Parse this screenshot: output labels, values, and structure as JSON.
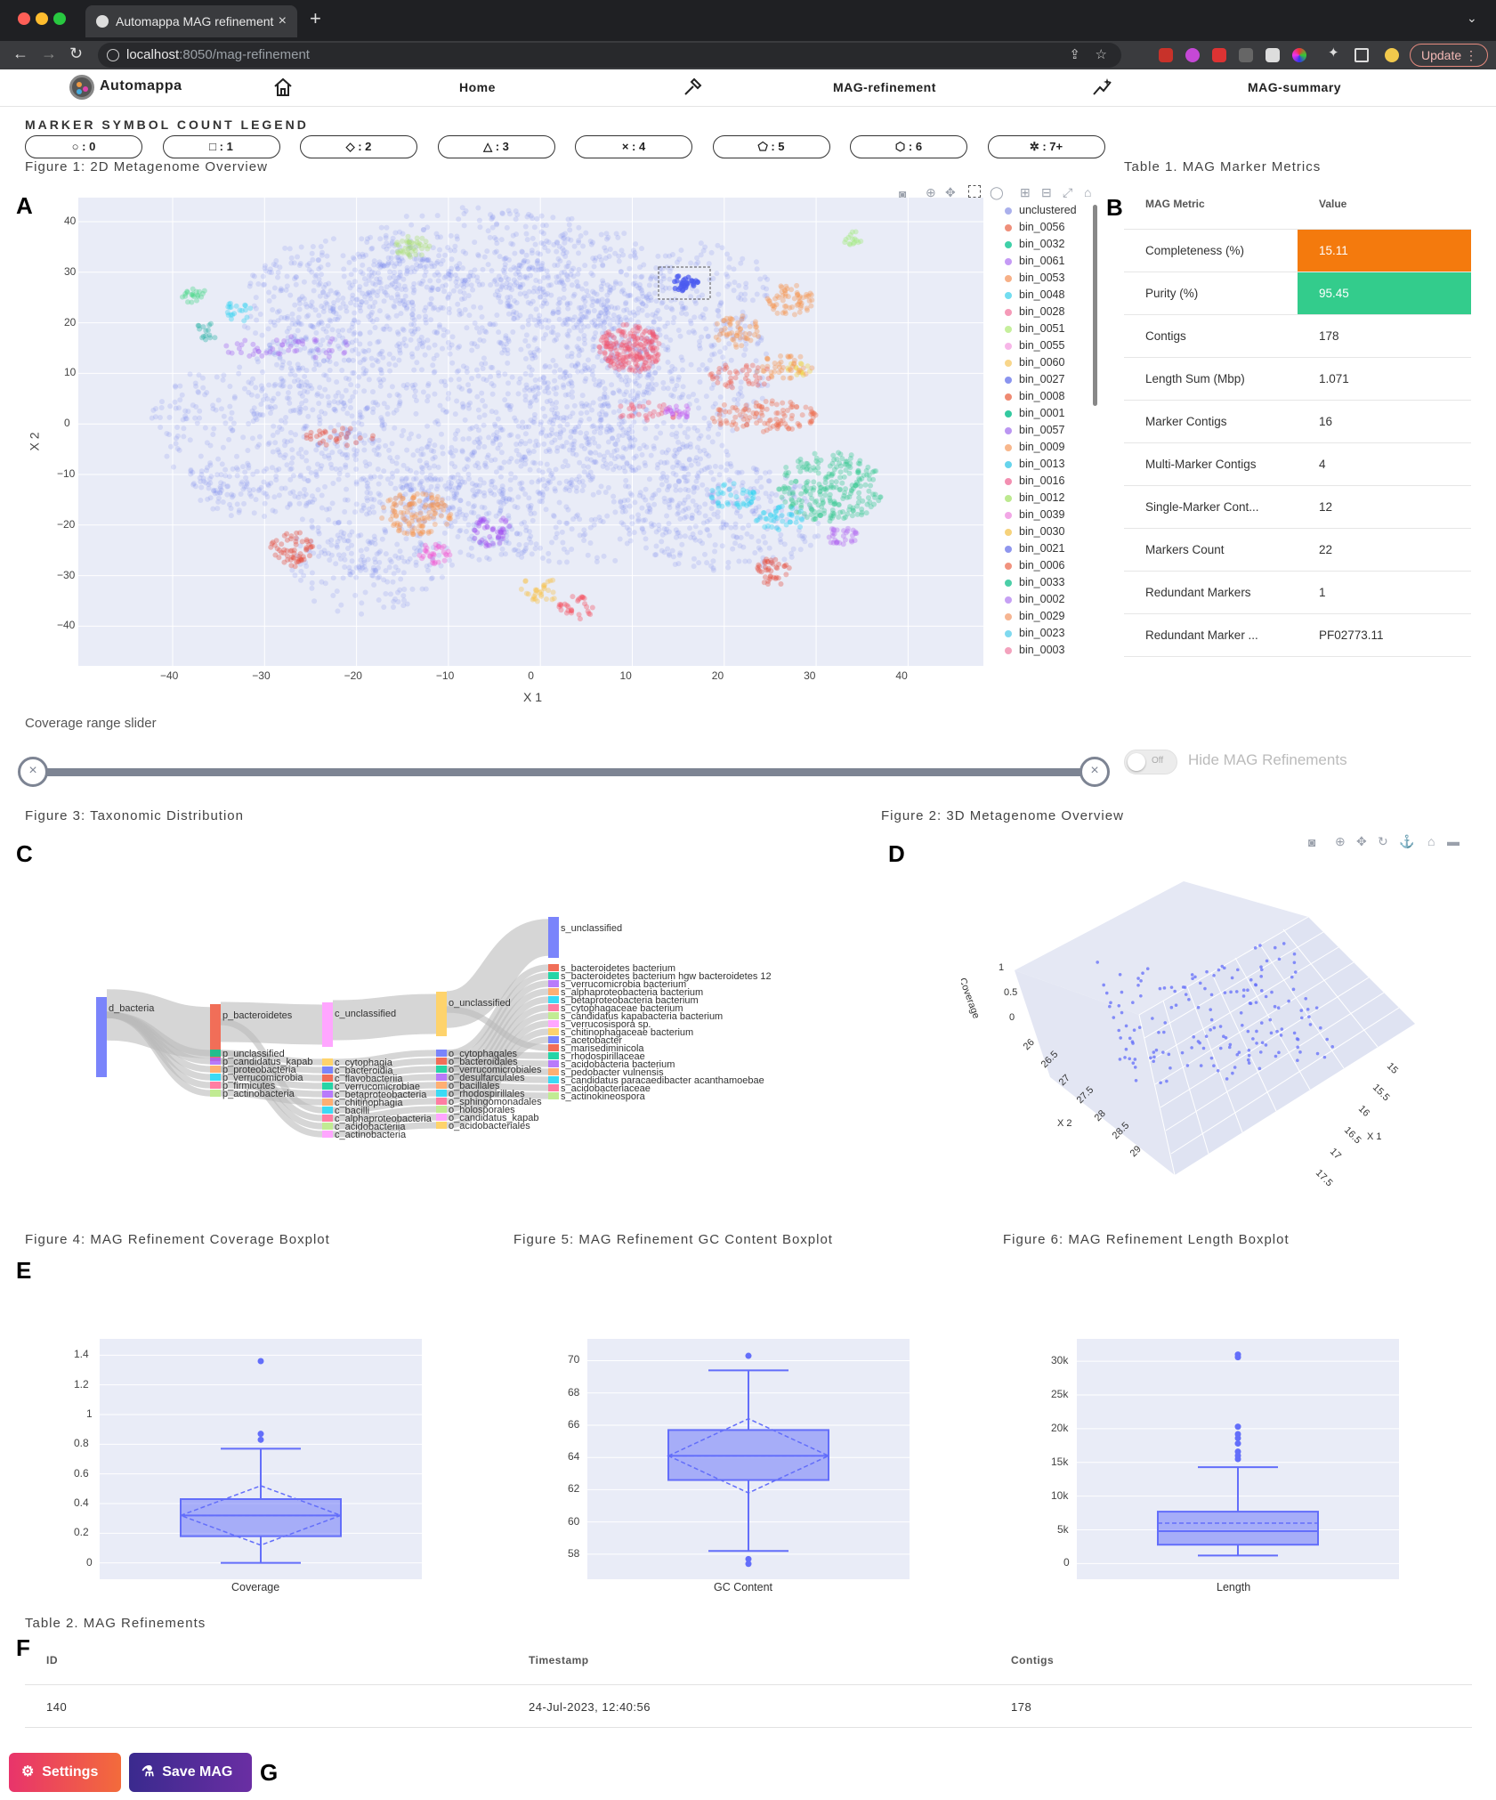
{
  "browser": {
    "tab_title": "Automappa MAG refinement",
    "url_host": "localhost",
    "url_path": ":8050/mag-refinement",
    "update_label": "Update"
  },
  "nav": {
    "brand": "Automappa",
    "home": "Home",
    "refine": "MAG-refinement",
    "summary": "MAG-summary"
  },
  "legend": {
    "title": "MARKER SYMBOL COUNT LEGEND",
    "buttons": [
      {
        "symbol": "○",
        "label": " : 0"
      },
      {
        "symbol": "□",
        "label": " : 1"
      },
      {
        "symbol": "◇",
        "label": " : 2"
      },
      {
        "symbol": "△",
        "label": " : 3"
      },
      {
        "symbol": "×",
        "label": " : 4"
      },
      {
        "symbol": "⬠",
        "label": " : 5"
      },
      {
        "symbol": "⬡",
        "label": " : 6"
      },
      {
        "symbol": "✲",
        "label": " : 7+"
      }
    ]
  },
  "fig1": {
    "title": "Figure 1: 2D Metagenome Overview",
    "letter": "A",
    "xlabel": "X 1",
    "ylabel": "X 2",
    "xticks": [
      "−40",
      "−30",
      "−20",
      "−10",
      "0",
      "10",
      "20",
      "30",
      "40"
    ],
    "yticks": [
      "40",
      "30",
      "20",
      "10",
      "0",
      "−10",
      "−20",
      "−30",
      "−40"
    ],
    "legend": [
      {
        "name": "unclustered",
        "color": "#aab0ec"
      },
      {
        "name": "bin_0056",
        "color": "#ef8f7a"
      },
      {
        "name": "bin_0032",
        "color": "#3fd0a8"
      },
      {
        "name": "bin_0061",
        "color": "#c59af5"
      },
      {
        "name": "bin_0053",
        "color": "#f7b087"
      },
      {
        "name": "bin_0048",
        "color": "#72ddf0"
      },
      {
        "name": "bin_0028",
        "color": "#f59ab8"
      },
      {
        "name": "bin_0051",
        "color": "#c6ef9c"
      },
      {
        "name": "bin_0055",
        "color": "#f7b6e8"
      },
      {
        "name": "bin_0060",
        "color": "#f8d68b"
      },
      {
        "name": "bin_0027",
        "color": "#8a94ef"
      },
      {
        "name": "bin_0008",
        "color": "#ef8a72"
      },
      {
        "name": "bin_0001",
        "color": "#33c9a0"
      },
      {
        "name": "bin_0057",
        "color": "#bb96f2"
      },
      {
        "name": "bin_0009",
        "color": "#f8b78c"
      },
      {
        "name": "bin_0013",
        "color": "#66d4ec"
      },
      {
        "name": "bin_0016",
        "color": "#f38fb1"
      },
      {
        "name": "bin_0012",
        "color": "#bde98f"
      },
      {
        "name": "bin_0039",
        "color": "#f2a7e6"
      },
      {
        "name": "bin_0030",
        "color": "#f6d27b"
      },
      {
        "name": "bin_0021",
        "color": "#8f96ee"
      },
      {
        "name": "bin_0006",
        "color": "#f1937e"
      },
      {
        "name": "bin_0033",
        "color": "#4bcea7"
      },
      {
        "name": "bin_0002",
        "color": "#c6a0f4"
      },
      {
        "name": "bin_0029",
        "color": "#f6b592"
      },
      {
        "name": "bin_0023",
        "color": "#7fd9ef"
      },
      {
        "name": "bin_0003",
        "color": "#f3a2bd"
      }
    ]
  },
  "table1": {
    "title": "Table 1. MAG Marker Metrics",
    "letter": "B",
    "header_metric": "MAG Metric",
    "header_value": "Value",
    "rows": [
      {
        "metric": "Completeness (%)",
        "value": "15.11",
        "bg": "#f47a0d"
      },
      {
        "metric": "Purity (%)",
        "value": "95.45",
        "bg": "#33cc8c"
      },
      {
        "metric": "Contigs",
        "value": "178",
        "bg": ""
      },
      {
        "metric": "Length Sum (Mbp)",
        "value": "1.071",
        "bg": ""
      },
      {
        "metric": "Marker Contigs",
        "value": "16",
        "bg": ""
      },
      {
        "metric": "Multi-Marker Contigs",
        "value": "4",
        "bg": ""
      },
      {
        "metric": "Single-Marker Cont...",
        "value": "12",
        "bg": ""
      },
      {
        "metric": "Markers Count",
        "value": "22",
        "bg": ""
      },
      {
        "metric": "Redundant Markers",
        "value": "1",
        "bg": ""
      },
      {
        "metric": "Redundant Marker ...",
        "value": "PF02773.11",
        "bg": ""
      }
    ]
  },
  "slider": {
    "label": "Coverage range slider",
    "toggle_text": "Off",
    "toggle_label": "Hide MAG Refinements"
  },
  "fig3": {
    "title": "Figure 3: Taxonomic Distribution",
    "letter": "C",
    "nodes": [
      "d_bacteria",
      "p_bacteroidetes",
      "p_unclassified",
      "p_candidatus_kapab",
      "p_proteobacteria",
      "p_verrucomicrobia",
      "p_firmicutes",
      "p_actinobacteria",
      "c_unclassified",
      "c_cytophagia",
      "c_bacteroidia",
      "c_flavobacteriia",
      "c_verrucomicrobiae",
      "c_betaproteobacteria",
      "c_chitinophagia",
      "c_bacilli",
      "c_alphaproteobacteria",
      "c_acidobacteriia",
      "c_actinobacteria",
      "o_unclassified",
      "o_cytophagales",
      "o_bacteroidales",
      "o_verrucomicrobiales",
      "o_desulfarculales",
      "o_bacillales",
      "o_rhodospirillales",
      "o_sphingomonadales",
      "o_holosporales",
      "o_candidatus_kapab",
      "o_acidobacteriales",
      "s_unclassified",
      "s_bacteroidetes bacterium",
      "s_bacteroidetes bacterium hgw bacteroidetes 12",
      "s_verrucomicrobia bacterium",
      "s_alphaproteobacteria bacterium",
      "s_betaproteobacteria bacterium",
      "s_cytophagaceae bacterium",
      "s_candidatus kapabacteria bacterium",
      "s_verrucosispora sp.",
      "s_chitinophagaceae bacterium",
      "s_acetobacter",
      "s_marisediminicola",
      "s_rhodospirillaceae",
      "s_acidobacteria bacterium",
      "s_pedobacter vulnensis",
      "s_candidatus paracaedibacter acanthamoebae",
      "s_acidobacteriaceae",
      "s_actinokineospora"
    ]
  },
  "fig2": {
    "title": "Figure 2: 3D Metagenome Overview",
    "letter": "D",
    "zlabel": "Coverage",
    "ylabel": "X 2",
    "xlabel": "X 1",
    "zticks": [
      "1",
      "0.5",
      "0"
    ],
    "yticks": [
      "26",
      "26.5",
      "27",
      "27.5",
      "28",
      "28.5",
      "29"
    ],
    "xticks": [
      "15",
      "15.5",
      "16",
      "16.5",
      "17",
      "17.5"
    ]
  },
  "fig4": {
    "title": "Figure 4: MAG Refinement Coverage Boxplot",
    "letter": "E",
    "category": "Coverage",
    "yticks": [
      "1.4",
      "1.2",
      "1",
      "0.8",
      "0.6",
      "0.4",
      "0.2",
      "0"
    ]
  },
  "fig5": {
    "title": "Figure 5: MAG Refinement GC Content Boxplot",
    "category": "GC Content",
    "yticks": [
      "70",
      "68",
      "66",
      "64",
      "62",
      "60",
      "58"
    ]
  },
  "fig6": {
    "title": "Figure 6: MAG Refinement Length Boxplot",
    "category": "Length",
    "yticks": [
      "30k",
      "25k",
      "20k",
      "15k",
      "10k",
      "5k",
      "0"
    ]
  },
  "chart_data": [
    {
      "type": "scatter",
      "xlabel": "X 1",
      "ylabel": "X 2",
      "xlim": [
        -50,
        49
      ],
      "ylim": [
        -48,
        44
      ],
      "series_note": "points colored by bin; see fig1.legend"
    },
    {
      "type": "box",
      "category": "Coverage",
      "ylim": [
        -0.05,
        1.45
      ],
      "min": 0.0,
      "q1": 0.18,
      "median": 0.32,
      "q3": 0.43,
      "max": 0.77,
      "mean": 0.32,
      "sd": 0.2,
      "outliers": [
        0.83,
        0.87,
        1.36
      ]
    },
    {
      "type": "box",
      "category": "GC Content",
      "ylim": [
        57,
        70.8
      ],
      "min": 58.2,
      "q1": 62.6,
      "median": 64.1,
      "q3": 65.7,
      "max": 69.4,
      "mean": 64.1,
      "sd": 2.3,
      "outliers": [
        57.4,
        57.7,
        70.3
      ]
    },
    {
      "type": "box",
      "category": "Length",
      "ylim": [
        -1000,
        32000
      ],
      "min": 1200,
      "q1": 2800,
      "median": 4800,
      "q3": 7700,
      "max": 14300,
      "mean": 6000,
      "outliers": [
        15500,
        16000,
        16600,
        17800,
        18600,
        19200,
        20300,
        30600,
        31000
      ]
    }
  ],
  "table2": {
    "title": "Table 2. MAG Refinements",
    "letter": "F",
    "headers": [
      "ID",
      "Timestamp",
      "Contigs"
    ],
    "rows": [
      {
        "id": "140",
        "timestamp": "24-Jul-2023, 12:40:56",
        "contigs": "178"
      }
    ]
  },
  "actions": {
    "settings": "Settings",
    "save": "Save MAG",
    "letter": "G"
  }
}
